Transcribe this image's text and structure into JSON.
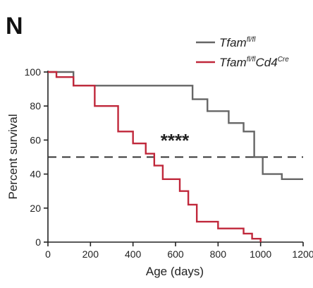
{
  "panel_label": "N",
  "chart_data": {
    "type": "line",
    "step": true,
    "title": "",
    "xlabel": "Age (days)",
    "ylabel": "Percent survival",
    "xlim": [
      0,
      1200
    ],
    "ylim": [
      0,
      100
    ],
    "xticks": [
      0,
      200,
      400,
      600,
      800,
      1000,
      1200
    ],
    "yticks": [
      0,
      20,
      40,
      60,
      80,
      100
    ],
    "grid": false,
    "legend_position": "top-right",
    "reference_line": {
      "y": 50,
      "style": "dashed"
    },
    "annotation": "****",
    "series": [
      {
        "name": "Tfam",
        "name_superscript": "fl/fl",
        "color": "#666666",
        "x": [
          0,
          120,
          680,
          750,
          850,
          920,
          970,
          1010,
          1100,
          1200
        ],
        "y": [
          100,
          92,
          84,
          77,
          70,
          65,
          50,
          40,
          37,
          37
        ]
      },
      {
        "name": "Tfam",
        "name_superscript": "fl/fl",
        "name_suffix": "Cd4",
        "name_suffix_superscript": "Cre",
        "color": "#c0283b",
        "x": [
          0,
          40,
          120,
          220,
          330,
          400,
          460,
          500,
          540,
          620,
          660,
          700,
          800,
          920,
          960,
          1000
        ],
        "y": [
          100,
          97,
          92,
          80,
          65,
          58,
          52,
          45,
          37,
          30,
          22,
          12,
          8,
          5,
          2,
          0
        ]
      }
    ]
  }
}
